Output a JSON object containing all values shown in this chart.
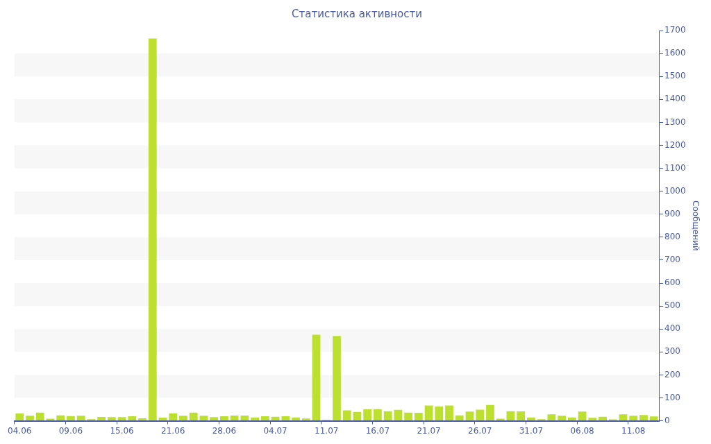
{
  "chart_data": {
    "type": "bar",
    "title": "Статистика активности",
    "ylabel": "Сообщений",
    "categories": [
      "04.06",
      null,
      null,
      null,
      null,
      "09.06",
      null,
      null,
      null,
      null,
      "15.06",
      null,
      null,
      null,
      null,
      "21.06",
      null,
      null,
      null,
      null,
      "28.06",
      null,
      null,
      null,
      null,
      "04.07",
      null,
      null,
      null,
      null,
      "11.07",
      null,
      null,
      null,
      null,
      "16.07",
      null,
      null,
      null,
      null,
      "21.07",
      null,
      null,
      null,
      null,
      "26.07",
      null,
      null,
      null,
      null,
      "31.07",
      null,
      null,
      null,
      null,
      "06.08",
      null,
      null,
      null,
      null,
      "11.08",
      null,
      null
    ],
    "values": [
      32,
      22,
      36,
      9,
      24,
      21,
      22,
      7,
      17,
      16,
      16,
      20,
      11,
      1665,
      14,
      33,
      22,
      36,
      22,
      16,
      20,
      23,
      23,
      15,
      20,
      18,
      20,
      15,
      10,
      375,
      5,
      370,
      46,
      39,
      50,
      51,
      42,
      48,
      36,
      35,
      67,
      62,
      67,
      24,
      40,
      49,
      69,
      9,
      42,
      41,
      15,
      7,
      28,
      22,
      15,
      40,
      13,
      18,
      6,
      28,
      22,
      25,
      19
    ],
    "color": "#bde030",
    "ylim": [
      0,
      1700
    ],
    "yticks": [
      0,
      100,
      200,
      300,
      400,
      500,
      600,
      700,
      800,
      900,
      1000,
      1100,
      1200,
      1300,
      1400,
      1500,
      1600,
      1700
    ],
    "bands": [
      {
        "axis": "y",
        "from": 100,
        "to": 200,
        "color": "#f7f7f7"
      },
      {
        "axis": "y",
        "from": 300,
        "to": 400,
        "color": "#f7f7f7"
      },
      {
        "axis": "y",
        "from": 500,
        "to": 600,
        "color": "#f7f7f7"
      },
      {
        "axis": "y",
        "from": 700,
        "to": 800,
        "color": "#f7f7f7"
      },
      {
        "axis": "y",
        "from": 900,
        "to": 1000,
        "color": "#f7f7f7"
      },
      {
        "axis": "y",
        "from": 1100,
        "to": 1200,
        "color": "#f7f7f7"
      },
      {
        "axis": "y",
        "from": 1300,
        "to": 1400,
        "color": "#f7f7f7"
      },
      {
        "axis": "y",
        "from": 1500,
        "to": 1600,
        "color": "#f7f7f7"
      }
    ]
  }
}
